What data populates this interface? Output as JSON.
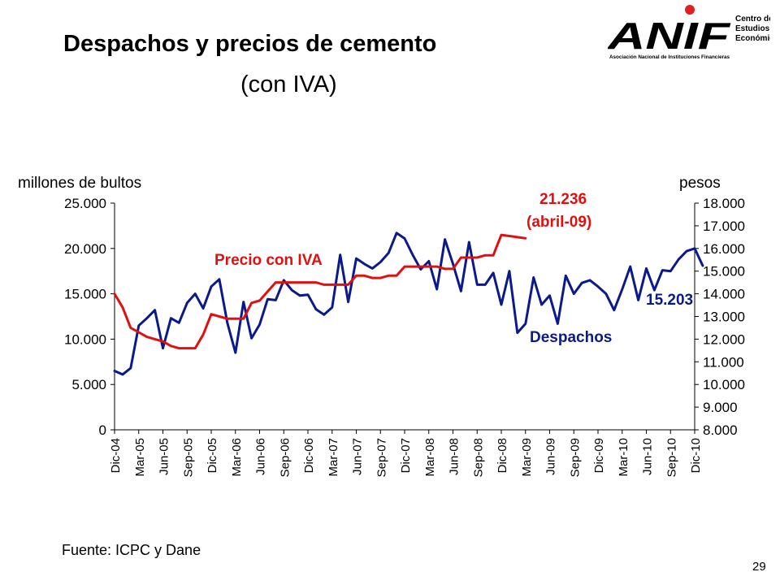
{
  "header": {
    "title": "Despachos y precios de cemento",
    "subtitle": "(con IVA)"
  },
  "logo": {
    "wordmark": "ANIF",
    "line1": "Centro de",
    "line2": "Estudios",
    "line3": "Económicos",
    "tagline": "Asociación Nacional de Instituciones Financieras",
    "dot_color": "#e02020"
  },
  "footer": {
    "source": "Fuente: ICPC y Dane",
    "page_number": "29"
  },
  "chart_data": {
    "type": "line",
    "ylabel_left": "millones de bultos",
    "ylabel_right": "pesos",
    "ylim_left": [
      0,
      25000
    ],
    "ylim_right": [
      8000,
      18000
    ],
    "yticks_left": [
      "0",
      "5.000",
      "10.000",
      "15.000",
      "20.000",
      "25.000"
    ],
    "yticks_right": [
      "8.000",
      "9.000",
      "10.000",
      "11.000",
      "12.000",
      "13.000",
      "14.000",
      "15.000",
      "16.000",
      "17.000",
      "18.000"
    ],
    "x_tick_labels": [
      "Dic-04",
      "Mar-05",
      "Jun-05",
      "Sep-05",
      "Dic-05",
      "Mar-06",
      "Jun-06",
      "Sep-06",
      "Dic-06",
      "Mar-07",
      "Jun-07",
      "Sep-07",
      "Dic-07",
      "Mar-08",
      "Jun-08",
      "Sep-08",
      "Dic-08",
      "Mar-09",
      "Jun-09",
      "Sep-09",
      "Dic-09",
      "Mar-10",
      "Jun-10",
      "Sep-10",
      "Dic-10"
    ],
    "series": [
      {
        "name": "Despachos",
        "axis": "left",
        "color": "#0a1a8c",
        "values": [
          6500,
          6100,
          6800,
          11500,
          12300,
          13200,
          9000,
          12300,
          11800,
          14000,
          15000,
          13400,
          15800,
          16600,
          11800,
          8500,
          14100,
          10100,
          11600,
          14400,
          14300,
          16500,
          15400,
          14800,
          14900,
          13300,
          12700,
          13500,
          19300,
          14100,
          18900,
          18300,
          17800,
          18500,
          19500,
          21700,
          21100,
          19300,
          17700,
          18600,
          15500,
          21000,
          18300,
          15300,
          20700,
          16000,
          16000,
          17300,
          13800,
          17500,
          10700,
          11700,
          16800,
          13800,
          14800,
          11700,
          17000,
          15000,
          16200,
          16500,
          15800,
          15000,
          13200,
          15500,
          18000,
          14300,
          17800,
          15400,
          17600,
          17500,
          18800,
          19700,
          20000,
          18100
        ]
      },
      {
        "name": "Precio con IVA",
        "axis": "right",
        "color": "#e01010",
        "values": [
          14000,
          13400,
          12500,
          12300,
          12100,
          12000,
          11900,
          11700,
          11600,
          11600,
          11600,
          12200,
          13100,
          13000,
          12900,
          12900,
          12900,
          13600,
          13700,
          14100,
          14500,
          14500,
          14500,
          14500,
          14500,
          14500,
          14400,
          14400,
          14400,
          14400,
          14800,
          14800,
          14700,
          14700,
          14800,
          14800,
          15200,
          15200,
          15200,
          15200,
          15200,
          15100,
          15100,
          15600,
          15600,
          15600,
          15700,
          15700,
          16600,
          16550,
          16500,
          16450
        ]
      }
    ],
    "annotations": {
      "price_label": "Precio con IVA",
      "price_value_1": "21.236",
      "price_value_2": "(abril-09)",
      "dispatch_label": "Despachos",
      "dispatch_value": "15.203"
    }
  }
}
